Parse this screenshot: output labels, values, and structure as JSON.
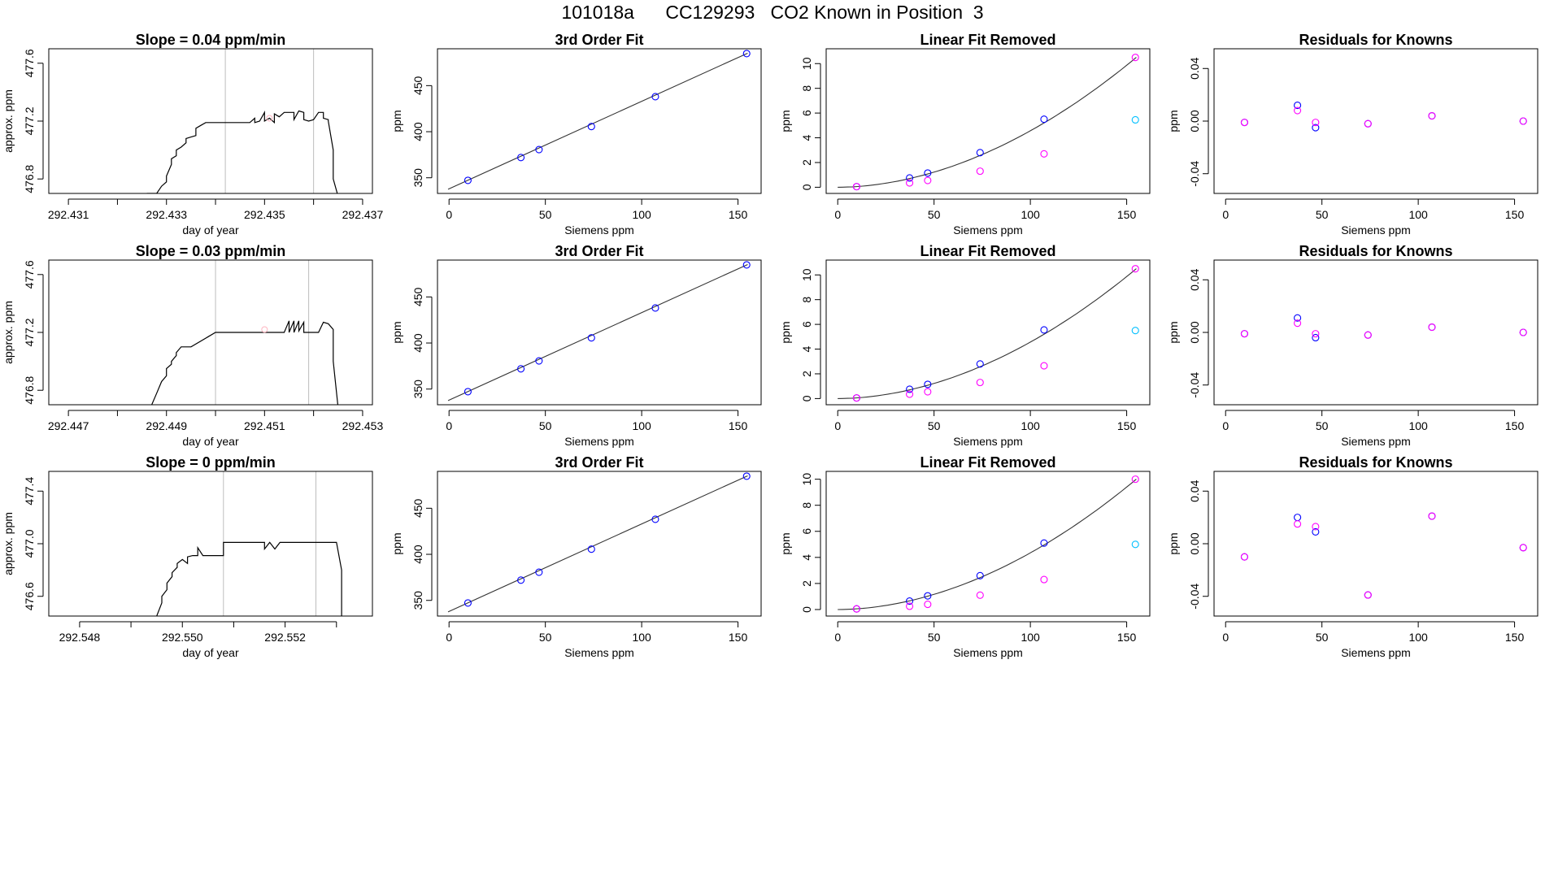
{
  "header": {
    "run": "101018a",
    "tank": "CC129293",
    "description": "CO2 Known in Position  3"
  },
  "colors": {
    "line": "#000000",
    "box": "#000000",
    "vline": "#bebebe",
    "fit_point": "#0000ff",
    "residual_point": "#ff00ff",
    "reference_point": "#00bfff",
    "curve": "#333333"
  },
  "chart_data": [
    {
      "type": "line",
      "row": 0,
      "col": 0,
      "title": "Slope =  0.04  ppm/min",
      "xlabel": "day of year",
      "ylabel": "approx. ppm",
      "xlim": [
        292.4306,
        292.4372
      ],
      "ylim": [
        476.7,
        477.7
      ],
      "xticks": [
        292.431,
        292.432,
        292.433,
        292.434,
        292.435,
        292.436,
        292.437
      ],
      "xtick_labels": [
        "292.431",
        "",
        "292.433",
        "",
        "292.435",
        "",
        "292.437"
      ],
      "yticks": [
        476.8,
        477.2,
        477.6
      ],
      "ytick_labels": [
        "476.8",
        "477.2",
        "477.6"
      ],
      "vlines": [
        292.4342,
        292.436
      ],
      "extra_point": {
        "x": 292.4351,
        "y": 477.22
      },
      "x": [
        292.4326,
        292.4328,
        292.4329,
        292.433,
        292.433,
        292.4331,
        292.4331,
        292.4332,
        292.4332,
        292.4333,
        292.4334,
        292.4334,
        292.4335,
        292.4336,
        292.4336,
        292.4337,
        292.4338,
        292.4339,
        292.4347,
        292.4348,
        292.4348,
        292.4349,
        292.435,
        292.435,
        292.4351,
        292.4352,
        292.4352,
        292.4353,
        292.4354,
        292.4354,
        292.4356,
        292.4356,
        292.4357,
        292.4358,
        292.4358,
        292.4359,
        292.436,
        292.4361,
        292.4362,
        292.4362,
        292.4363,
        292.4363,
        292.4364,
        292.4364,
        292.4365
      ],
      "y": [
        476.7,
        476.7,
        476.75,
        476.78,
        476.82,
        476.9,
        476.94,
        476.96,
        477.0,
        477.02,
        477.05,
        477.08,
        477.09,
        477.1,
        477.15,
        477.17,
        477.19,
        477.19,
        477.19,
        477.22,
        477.19,
        477.2,
        477.26,
        477.2,
        477.22,
        477.19,
        477.25,
        477.23,
        477.26,
        477.26,
        477.26,
        477.21,
        477.27,
        477.26,
        477.21,
        477.2,
        477.21,
        477.26,
        477.26,
        477.22,
        477.21,
        477.2,
        477.0,
        476.8,
        476.68
      ]
    },
    {
      "type": "scatter",
      "row": 0,
      "col": 1,
      "title": "3rd Order Fit",
      "xlabel": "Siemens ppm",
      "ylabel": "ppm",
      "xlim": [
        -6,
        162
      ],
      "ylim": [
        333,
        490
      ],
      "xticks": [
        0,
        50,
        100,
        150
      ],
      "yticks": [
        350,
        400,
        450
      ],
      "series": [
        {
          "name": "fit",
          "color": "#0000ff",
          "x": [
            9.8,
            37.3,
            46.7,
            73.9,
            107.1,
            154.5
          ],
          "y": [
            347.2,
            372.0,
            380.6,
            405.6,
            438.0,
            484.8
          ]
        }
      ],
      "curve": {
        "x": [
          -0.5,
          155
        ],
        "y": [
          337.5,
          485.2
        ]
      }
    },
    {
      "type": "scatter",
      "row": 0,
      "col": 2,
      "title": "Linear Fit Removed",
      "xlabel": "Siemens ppm",
      "ylabel": "ppm",
      "xlim": [
        -6,
        162
      ],
      "ylim": [
        -0.5,
        11.2
      ],
      "xticks": [
        0,
        50,
        100,
        150
      ],
      "yticks": [
        0,
        2,
        4,
        6,
        8,
        10
      ],
      "series": [
        {
          "name": "known",
          "color": "#0000ff",
          "x": [
            9.8,
            37.3,
            46.7,
            73.9,
            107.1
          ],
          "y": [
            0.05,
            0.75,
            1.15,
            2.8,
            5.5
          ]
        },
        {
          "name": "residual",
          "color": "#ff00ff",
          "x": [
            9.8,
            37.3,
            46.7,
            73.9,
            107.1,
            154.5
          ],
          "y": [
            0.05,
            0.35,
            0.55,
            1.3,
            2.7,
            10.5
          ]
        },
        {
          "name": "reference",
          "color": "#00bfff",
          "x": [
            154.5
          ],
          "y": [
            5.45
          ]
        }
      ],
      "curve": {
        "type": "power",
        "x0": 0,
        "x1": 155,
        "k": 10.5,
        "p": 1.9
      }
    },
    {
      "type": "scatter",
      "row": 0,
      "col": 3,
      "title": "Residuals for Knowns",
      "xlabel": "Siemens ppm",
      "ylabel": "ppm",
      "xlim": [
        -6,
        162
      ],
      "ylim": [
        -0.055,
        0.055
      ],
      "xticks": [
        0,
        50,
        100,
        150
      ],
      "yticks": [
        -0.04,
        0.0,
        0.04
      ],
      "ytick_labels": [
        "-0.04",
        "0.00",
        "0.04"
      ],
      "series": [
        {
          "name": "fit",
          "color": "#0000ff",
          "x": [
            9.8,
            37.3,
            46.7,
            73.9,
            107.1,
            154.5
          ],
          "y": [
            -0.001,
            0.012,
            -0.005,
            -0.002,
            0.004,
            0.0
          ]
        },
        {
          "name": "residual",
          "color": "#ff00ff",
          "x": [
            9.8,
            37.3,
            46.7,
            73.9,
            107.1,
            154.5
          ],
          "y": [
            -0.001,
            0.008,
            -0.001,
            -0.002,
            0.004,
            0.0
          ]
        }
      ]
    },
    {
      "type": "line",
      "row": 1,
      "col": 0,
      "title": "Slope =  0.03  ppm/min",
      "xlabel": "day of year",
      "ylabel": "approx. ppm",
      "xlim": [
        292.4466,
        292.4532
      ],
      "ylim": [
        476.7,
        477.7
      ],
      "xticks": [
        292.447,
        292.448,
        292.449,
        292.45,
        292.451,
        292.452,
        292.453
      ],
      "xtick_labels": [
        "292.447",
        "",
        "292.449",
        "",
        "292.451",
        "",
        "292.453"
      ],
      "yticks": [
        476.8,
        477.2,
        477.6
      ],
      "ytick_labels": [
        "476.8",
        "477.2",
        "477.6"
      ],
      "vlines": [
        292.45,
        292.4519
      ],
      "extra_point": {
        "x": 292.451,
        "y": 477.22
      },
      "x": [
        292.4487,
        292.4488,
        292.4489,
        292.449,
        292.449,
        292.4491,
        292.4491,
        292.4492,
        292.4492,
        292.4493,
        292.4494,
        292.4495,
        292.45,
        292.4514,
        292.4515,
        292.4515,
        292.4516,
        292.4516,
        292.4517,
        292.4517,
        292.4518,
        292.4518,
        292.4519,
        292.4521,
        292.4522,
        292.4523,
        292.4524,
        292.4524,
        292.4525
      ],
      "y": [
        476.7,
        476.78,
        476.86,
        476.9,
        476.95,
        476.98,
        477.0,
        477.04,
        477.06,
        477.1,
        477.1,
        477.1,
        477.2,
        477.2,
        477.28,
        477.2,
        477.28,
        477.2,
        477.28,
        477.21,
        477.27,
        477.2,
        477.2,
        477.2,
        477.27,
        477.26,
        477.22,
        477.0,
        476.68
      ]
    },
    {
      "type": "scatter",
      "row": 1,
      "col": 1,
      "title": "3rd Order Fit",
      "xlabel": "Siemens ppm",
      "ylabel": "ppm",
      "xlim": [
        -6,
        162
      ],
      "ylim": [
        333,
        490
      ],
      "xticks": [
        0,
        50,
        100,
        150
      ],
      "yticks": [
        350,
        400,
        450
      ],
      "series": [
        {
          "name": "fit",
          "color": "#0000ff",
          "x": [
            9.8,
            37.3,
            46.7,
            73.9,
            107.1,
            154.5
          ],
          "y": [
            347.2,
            372.0,
            380.6,
            405.6,
            438.0,
            484.8
          ]
        }
      ],
      "curve": {
        "x": [
          -0.5,
          155
        ],
        "y": [
          337.5,
          485.2
        ]
      }
    },
    {
      "type": "scatter",
      "row": 1,
      "col": 2,
      "title": "Linear Fit Removed",
      "xlabel": "Siemens ppm",
      "ylabel": "ppm",
      "xlim": [
        -6,
        162
      ],
      "ylim": [
        -0.5,
        11.2
      ],
      "xticks": [
        0,
        50,
        100,
        150
      ],
      "yticks": [
        0,
        2,
        4,
        6,
        8,
        10
      ],
      "series": [
        {
          "name": "known",
          "color": "#0000ff",
          "x": [
            9.8,
            37.3,
            46.7,
            73.9,
            107.1
          ],
          "y": [
            0.05,
            0.75,
            1.15,
            2.8,
            5.55
          ]
        },
        {
          "name": "residual",
          "color": "#ff00ff",
          "x": [
            9.8,
            37.3,
            46.7,
            73.9,
            107.1,
            154.5
          ],
          "y": [
            0.05,
            0.35,
            0.55,
            1.3,
            2.65,
            10.5
          ]
        },
        {
          "name": "reference",
          "color": "#00bfff",
          "x": [
            154.5
          ],
          "y": [
            5.5
          ]
        }
      ],
      "curve": {
        "type": "power",
        "x0": 0,
        "x1": 155,
        "k": 10.5,
        "p": 1.9
      }
    },
    {
      "type": "scatter",
      "row": 1,
      "col": 3,
      "title": "Residuals for Knowns",
      "xlabel": "Siemens ppm",
      "ylabel": "ppm",
      "xlim": [
        -6,
        162
      ],
      "ylim": [
        -0.055,
        0.055
      ],
      "xticks": [
        0,
        50,
        100,
        150
      ],
      "yticks": [
        -0.04,
        0.0,
        0.04
      ],
      "ytick_labels": [
        "-0.04",
        "0.00",
        "0.04"
      ],
      "series": [
        {
          "name": "fit",
          "color": "#0000ff",
          "x": [
            9.8,
            37.3,
            46.7,
            73.9,
            107.1,
            154.5
          ],
          "y": [
            -0.001,
            0.011,
            -0.004,
            -0.002,
            0.004,
            0.0
          ]
        },
        {
          "name": "residual",
          "color": "#ff00ff",
          "x": [
            9.8,
            37.3,
            46.7,
            73.9,
            107.1,
            154.5
          ],
          "y": [
            -0.001,
            0.007,
            -0.001,
            -0.002,
            0.004,
            0.0
          ]
        }
      ]
    },
    {
      "type": "line",
      "row": 2,
      "col": 0,
      "title": "Slope =  0  ppm/min",
      "xlabel": "day of year",
      "ylabel": "approx. ppm",
      "xlim": [
        292.5474,
        292.5537
      ],
      "ylim": [
        476.45,
        477.55
      ],
      "xticks": [
        292.548,
        292.549,
        292.55,
        292.551,
        292.552,
        292.553
      ],
      "xtick_labels": [
        "292.548",
        "",
        "292.550",
        "",
        "292.552",
        ""
      ],
      "yticks": [
        476.6,
        477.0,
        477.4
      ],
      "ytick_labels": [
        "476.6",
        "477.0",
        "477.4"
      ],
      "vlines": [
        292.5508,
        292.5526
      ],
      "x": [
        292.5495,
        292.5496,
        292.5496,
        292.5497,
        292.5497,
        292.5498,
        292.5498,
        292.5499,
        292.5499,
        292.55,
        292.5501,
        292.5501,
        292.5502,
        292.5502,
        292.5503,
        292.5503,
        292.5504,
        292.5508,
        292.5508,
        292.5509,
        292.5516,
        292.5516,
        292.5517,
        292.5518,
        292.5519,
        292.553,
        292.5531,
        292.5531
      ],
      "y": [
        476.45,
        476.55,
        476.6,
        476.65,
        476.7,
        476.75,
        476.78,
        476.82,
        476.85,
        476.88,
        476.85,
        476.9,
        476.91,
        476.91,
        476.91,
        476.97,
        476.91,
        476.91,
        477.01,
        477.01,
        477.01,
        476.96,
        477.01,
        476.96,
        477.01,
        477.01,
        476.8,
        476.45
      ]
    },
    {
      "type": "scatter",
      "row": 2,
      "col": 1,
      "title": "3rd Order Fit",
      "xlabel": "Siemens ppm",
      "ylabel": "ppm",
      "xlim": [
        -6,
        162
      ],
      "ylim": [
        333,
        490
      ],
      "xticks": [
        0,
        50,
        100,
        150
      ],
      "yticks": [
        350,
        400,
        450
      ],
      "series": [
        {
          "name": "fit",
          "color": "#0000ff",
          "x": [
            9.8,
            37.3,
            46.7,
            73.9,
            107.1,
            154.5
          ],
          "y": [
            347.2,
            372.0,
            380.6,
            405.6,
            438.0,
            484.8
          ]
        }
      ],
      "curve": {
        "x": [
          -0.5,
          155
        ],
        "y": [
          337.5,
          485.2
        ]
      }
    },
    {
      "type": "scatter",
      "row": 2,
      "col": 2,
      "title": "Linear Fit Removed",
      "xlabel": "Siemens ppm",
      "ylabel": "ppm",
      "xlim": [
        -6,
        162
      ],
      "ylim": [
        -0.5,
        10.6
      ],
      "xticks": [
        0,
        50,
        100,
        150
      ],
      "yticks": [
        0,
        2,
        4,
        6,
        8,
        10
      ],
      "series": [
        {
          "name": "known",
          "color": "#0000ff",
          "x": [
            9.8,
            37.3,
            46.7,
            73.9,
            107.1
          ],
          "y": [
            0.05,
            0.65,
            1.05,
            2.6,
            5.1
          ]
        },
        {
          "name": "residual",
          "color": "#ff00ff",
          "x": [
            9.8,
            37.3,
            46.7,
            73.9,
            107.1,
            154.5
          ],
          "y": [
            0.05,
            0.25,
            0.4,
            1.1,
            2.3,
            10.0
          ]
        },
        {
          "name": "reference",
          "color": "#00bfff",
          "x": [
            154.5
          ],
          "y": [
            5.0
          ]
        }
      ],
      "curve": {
        "type": "power",
        "x0": 0,
        "x1": 155,
        "k": 10.0,
        "p": 1.9
      }
    },
    {
      "type": "scatter",
      "row": 2,
      "col": 3,
      "title": "Residuals for Knowns",
      "xlabel": "Siemens ppm",
      "ylabel": "ppm",
      "xlim": [
        -6,
        162
      ],
      "ylim": [
        -0.055,
        0.055
      ],
      "xticks": [
        0,
        50,
        100,
        150
      ],
      "yticks": [
        -0.04,
        0.0,
        0.04
      ],
      "ytick_labels": [
        "-0.04",
        "0.00",
        "0.04"
      ],
      "series": [
        {
          "name": "fit",
          "color": "#0000ff",
          "x": [
            9.8,
            37.3,
            46.7,
            73.9,
            107.1,
            154.5
          ],
          "y": [
            -0.01,
            0.02,
            0.009,
            -0.039,
            0.021,
            -0.003
          ]
        },
        {
          "name": "residual",
          "color": "#ff00ff",
          "x": [
            9.8,
            37.3,
            46.7,
            73.9,
            107.1,
            154.5
          ],
          "y": [
            -0.01,
            0.015,
            0.013,
            -0.039,
            0.021,
            -0.003
          ]
        }
      ]
    }
  ]
}
